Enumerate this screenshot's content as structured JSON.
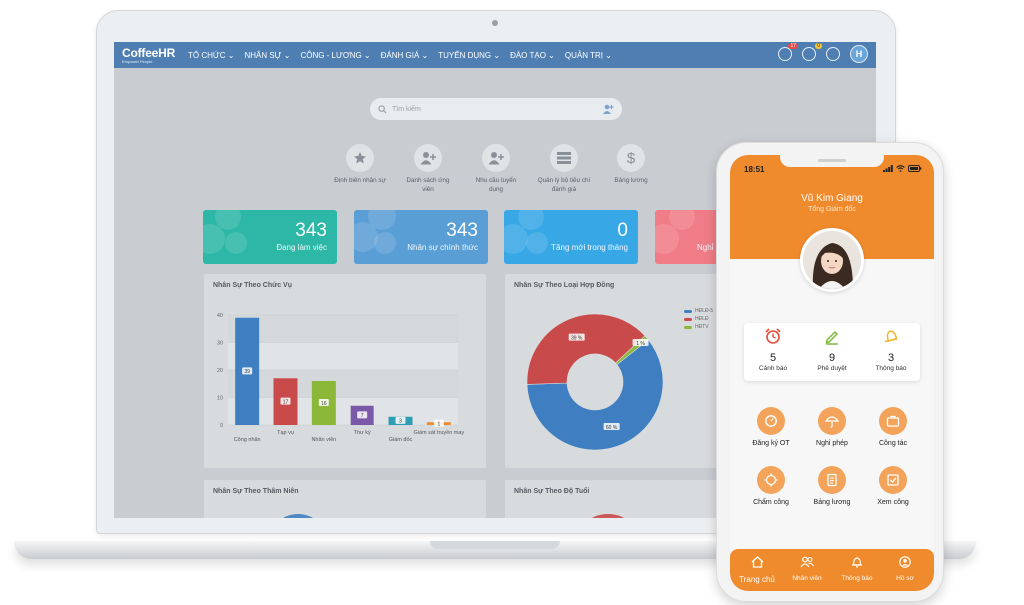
{
  "app": {
    "logo": "CoffeeHR",
    "logo_tagline": "Empower People",
    "avatar_letter": "H"
  },
  "nav": {
    "menu": [
      "TỔ CHỨC",
      "NHÂN SỰ",
      "CÔNG - LƯƠNG",
      "ĐÁNH GIÁ",
      "TUYỂN DỤNG",
      "ĐÀO TẠO",
      "QUẢN TRỊ"
    ],
    "notification_count": "17",
    "bell_count": "0"
  },
  "search": {
    "placeholder": "Tìm kiếm"
  },
  "quick_links": [
    {
      "label": "Định biên nhân sự",
      "icon": "star-icon"
    },
    {
      "label": "Danh sách ứng viên",
      "icon": "add-user-icon"
    },
    {
      "label": "Nhu cầu tuyển dụng",
      "icon": "add-user-icon"
    },
    {
      "label": "Quản lý bộ tiêu chí đánh giá",
      "icon": "list-icon"
    },
    {
      "label": "Bảng lương",
      "icon": "dollar-icon"
    }
  ],
  "stat_cards": [
    {
      "value": "343",
      "label": "Đang làm việc",
      "color": "#2cb7a6"
    },
    {
      "value": "343",
      "label": "Nhân sự chính thức",
      "color": "#5a9ed6"
    },
    {
      "value": "0",
      "label": "Tăng mới trong tháng",
      "color": "#37a7e6"
    },
    {
      "value": "",
      "label": "Nghỉ",
      "color": "#f07c87"
    }
  ],
  "panels": {
    "by_position": "Nhân Sự Theo Chức Vụ",
    "by_contract": "Nhân Sự Theo Loại Hợp Đồng",
    "by_seniority": "Nhân Sự Theo Thâm Niên",
    "by_age": "Nhân Sự Theo Độ Tuổi"
  },
  "chart_data": [
    {
      "type": "bar",
      "title": "Nhân Sự Theo Chức Vụ",
      "categories": [
        "Công nhân",
        "Tạp vụ",
        "Nhân viên",
        "Thư ký",
        "Giám đốc",
        "Giám sát truyền may"
      ],
      "values": [
        39,
        17,
        16,
        7,
        3,
        1
      ],
      "colors": [
        "#3f7fc1",
        "#c94a4a",
        "#8cb83a",
        "#7a5aa8",
        "#2f9db3",
        "#ee8a2a"
      ],
      "ylim": [
        0,
        40
      ],
      "yticks": [
        "0",
        "10",
        "20",
        "30",
        "40"
      ]
    },
    {
      "type": "pie",
      "title": "Nhân Sự Theo Loại Hợp Đồng",
      "labels": [
        "HĐLĐ-5",
        "HĐLĐ",
        "HĐTV"
      ],
      "values": [
        60.1,
        38.7,
        1.2
      ],
      "value_labels": [
        "60 %",
        "39 %",
        "1 %"
      ],
      "colors": [
        "#3f7fc1",
        "#c94a4a",
        "#8cb83a"
      ]
    }
  ],
  "mobile": {
    "status_time": "18:51",
    "user_name": "Vũ Kim Giang",
    "user_role": "Tổng Giám đốc",
    "stats": [
      {
        "value": "5",
        "label": "Cảnh báo",
        "icon": "alarm-clock-icon",
        "color": "#e64b3c"
      },
      {
        "value": "9",
        "label": "Phê duyệt",
        "icon": "pen-icon",
        "color": "#7dbb3a"
      },
      {
        "value": "3",
        "label": "Thông báo",
        "icon": "bell-icon",
        "color": "#f0b52a"
      }
    ],
    "actions": [
      {
        "label": "Đăng ký OT",
        "icon": "timer-icon"
      },
      {
        "label": "Nghỉ phép",
        "icon": "umbrella-icon"
      },
      {
        "label": "Công tác",
        "icon": "briefcase-icon"
      },
      {
        "label": "Chấm công",
        "icon": "target-icon"
      },
      {
        "label": "Bảng lương",
        "icon": "document-icon"
      },
      {
        "label": "Xem công",
        "icon": "check-square-icon"
      }
    ],
    "tabs": [
      {
        "label": "Trang chủ",
        "icon": "home-icon"
      },
      {
        "label": "Nhân viên",
        "icon": "users-icon"
      },
      {
        "label": "Thông báo",
        "icon": "bell-icon"
      },
      {
        "label": "Hồ sơ",
        "icon": "profile-icon"
      }
    ]
  }
}
